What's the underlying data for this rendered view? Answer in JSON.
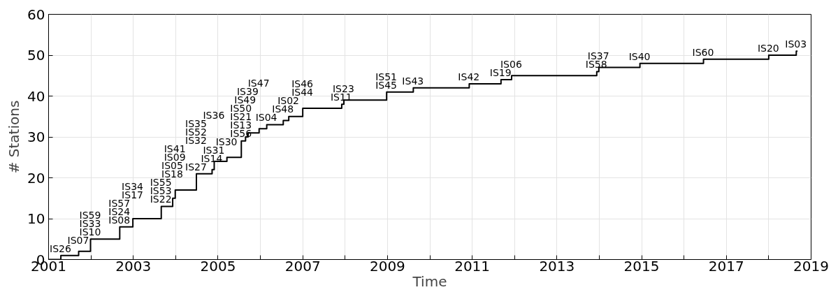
{
  "chart_data": {
    "type": "step",
    "xlabel": "Time",
    "ylabel": "# Stations",
    "x": [
      2001.0,
      2001.29,
      2001.71,
      2001.99,
      2002.68,
      2002.99,
      2003.66,
      2003.93,
      2003.99,
      2004.49,
      2004.86,
      2004.91,
      2005.21,
      2005.55,
      2005.65,
      2005.71,
      2005.97,
      2006.15,
      2006.54,
      2006.67,
      2007.0,
      2007.92,
      2007.97,
      2008.98,
      2009.61,
      2010.93,
      2011.68,
      2011.93,
      2013.94,
      2013.99,
      2014.96,
      2016.46,
      2018.0,
      2018.65,
      2018.68
    ],
    "series": [
      {
        "color": "#000000",
        "values": [
          0,
          1,
          2,
          5,
          8,
          10,
          13,
          15,
          17,
          21,
          22,
          24,
          25,
          29,
          30,
          31,
          32,
          33,
          34,
          35,
          37,
          38,
          39,
          41,
          42,
          43,
          44,
          45,
          46,
          47,
          48,
          49,
          50,
          51,
          51
        ]
      }
    ],
    "xlim": [
      2001,
      2019
    ],
    "xticks": [
      2001,
      {
        "value": 2002,
        "label": null
      },
      2003,
      {
        "value": 2004,
        "label": null
      },
      2005,
      {
        "value": 2006,
        "label": null
      },
      2007,
      {
        "value": 2008,
        "label": null
      },
      2009,
      {
        "value": 2010,
        "label": null
      },
      2011,
      {
        "value": 2012,
        "label": null
      },
      2013,
      {
        "value": 2014,
        "label": null
      },
      2015,
      {
        "value": 2016,
        "label": null
      },
      2017,
      {
        "value": 2018,
        "label": null
      },
      2019
    ],
    "ylim": [
      0,
      60
    ],
    "yticks": [
      0,
      10,
      20,
      30,
      40,
      50,
      60
    ],
    "grid": true,
    "line_style": "solid",
    "marker": "none",
    "annotations": [
      "IS26",
      "IS07",
      "IS10",
      "IS33",
      "IS59",
      "IS08",
      "IS24",
      "IS57",
      "IS17",
      "IS34",
      "IS22",
      "IS53",
      "IS55",
      "IS18",
      "IS05",
      "IS09",
      "IS41",
      "IS27",
      "IS32",
      "IS52",
      "IS35",
      "IS14",
      "IS31",
      "IS36",
      "IS30",
      "IS56",
      "IS13",
      "IS21",
      "IS50",
      "IS49",
      "IS39",
      "IS47",
      "IS04",
      "IS48",
      "IS02",
      "IS44",
      "IS46",
      "IS11",
      "IS23",
      "IS45",
      "IS51",
      "IS43",
      "IS42",
      "IS19",
      "IS06",
      "IS58",
      "IS37",
      "IS40",
      "IS60",
      "IS20",
      "IS03"
    ]
  }
}
